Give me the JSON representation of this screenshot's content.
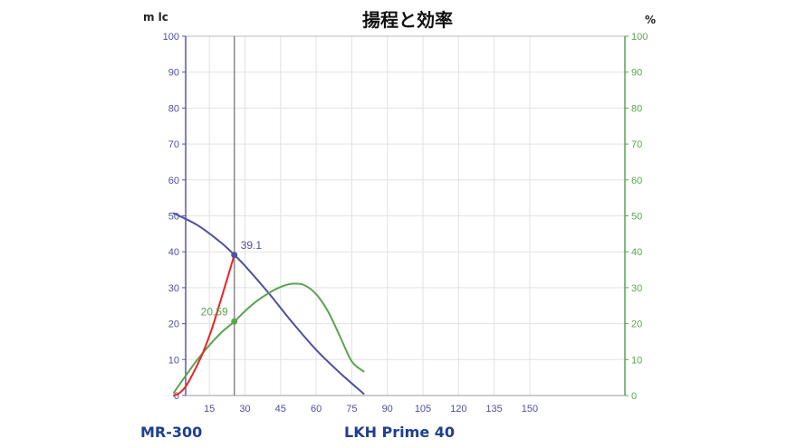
{
  "chart_data": {
    "type": "line",
    "title": "揚程と効率",
    "ylabel_left": "m lc",
    "ylabel_right": "%",
    "ylim_left": [
      0,
      100
    ],
    "ylim_right": [
      0,
      100
    ],
    "y_ticks_left": [
      "0",
      "10",
      "20",
      "30",
      "40",
      "50",
      "60",
      "70",
      "80",
      "90",
      "100"
    ],
    "y_ticks_right": [
      "0",
      "10",
      "20",
      "30",
      "40",
      "50",
      "60",
      "70",
      "80",
      "90",
      "100"
    ],
    "x_ticks": [
      "15",
      "30",
      "45",
      "60",
      "75",
      "90",
      "105",
      "120",
      "135",
      "150"
    ],
    "grid": true,
    "operating_point_x": 25.5,
    "series": [
      {
        "axis": "left",
        "color": "#4f4f9f",
        "x": [
          0,
          10,
          20,
          25.5,
          30,
          40,
          50,
          60,
          70,
          80
        ],
        "values": [
          50.7,
          47.4,
          42.5,
          39.1,
          36.1,
          28.5,
          20.3,
          12.7,
          6.3,
          0.5
        ]
      },
      {
        "axis": "right",
        "color": "#5aa450",
        "x": [
          0,
          5,
          10,
          15,
          20,
          25.5,
          30,
          35,
          40,
          45,
          50,
          55,
          60,
          65,
          70,
          75,
          80
        ],
        "values": [
          0.8,
          5.5,
          10,
          14,
          17.5,
          20.6,
          23.5,
          26.3,
          28.5,
          30.2,
          31.1,
          30.7,
          28.2,
          23.4,
          16.5,
          9.5,
          6.7
        ]
      },
      {
        "axis": "left",
        "color": "#ee2222",
        "x": [
          0,
          2,
          5,
          8,
          12,
          16,
          20,
          25.5
        ],
        "values": [
          0,
          0.5,
          2.5,
          6,
          11.5,
          18.5,
          27,
          39.1
        ]
      }
    ],
    "annotations": [
      {
        "text": "39.1",
        "x": 25.5,
        "y": 39.1,
        "axis": "left",
        "color": "#4f4f9f"
      },
      {
        "text": "20.59",
        "x": 25.5,
        "y": 20.59,
        "axis": "right",
        "color": "#5aa450"
      }
    ]
  },
  "footer": {
    "left_label": "MR-300",
    "center_label": "LKH Prime 40"
  }
}
